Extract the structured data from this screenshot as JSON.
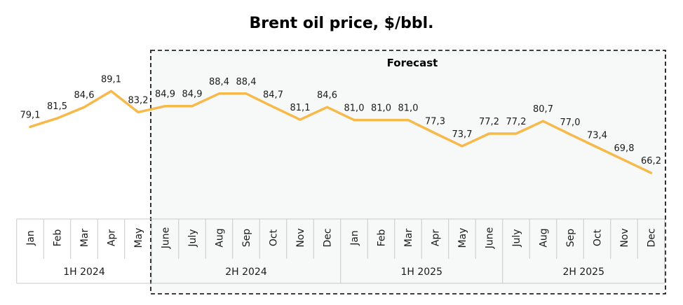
{
  "chart_data": {
    "type": "line",
    "title": "Brent oil price, $/bbl.",
    "categories": [
      "Jan",
      "Feb",
      "Mar",
      "Apr",
      "May",
      "June",
      "July",
      "Aug",
      "Sep",
      "Oct",
      "Nov",
      "Dec",
      "Jan",
      "Feb",
      "Mar",
      "Apr",
      "May",
      "June",
      "July",
      "Aug",
      "Sep",
      "Oct",
      "Nov",
      "Dec"
    ],
    "values": [
      79.1,
      81.5,
      84.6,
      89.1,
      83.2,
      84.9,
      84.9,
      88.4,
      88.4,
      84.7,
      81.1,
      84.6,
      81.0,
      81.0,
      81.0,
      77.3,
      73.7,
      77.2,
      77.2,
      80.7,
      77.0,
      73.4,
      69.8,
      66.2
    ],
    "value_labels": [
      "79,1",
      "81,5",
      "84,6",
      "89,1",
      "83,2",
      "84,9",
      "84,9",
      "88,4",
      "88,4",
      "84,7",
      "81,1",
      "84,6",
      "81,0",
      "81,0",
      "81,0",
      "77,3",
      "73,7",
      "77,2",
      "77,2",
      "80,7",
      "77,0",
      "73,4",
      "69,8",
      "66,2"
    ],
    "groups": [
      {
        "label": "1H 2024",
        "start": 0,
        "end": 4
      },
      {
        "label": "2H 2024",
        "start": 5,
        "end": 11
      },
      {
        "label": "1H 2025",
        "start": 12,
        "end": 17
      },
      {
        "label": "2H 2025",
        "start": 18,
        "end": 23
      }
    ],
    "forecast": {
      "label": "Forecast",
      "start_index": 5
    },
    "ylim": [
      50,
      96
    ],
    "line_color": "#F7B949",
    "grid": false,
    "legend": "none",
    "xlabel": "",
    "ylabel": ""
  }
}
